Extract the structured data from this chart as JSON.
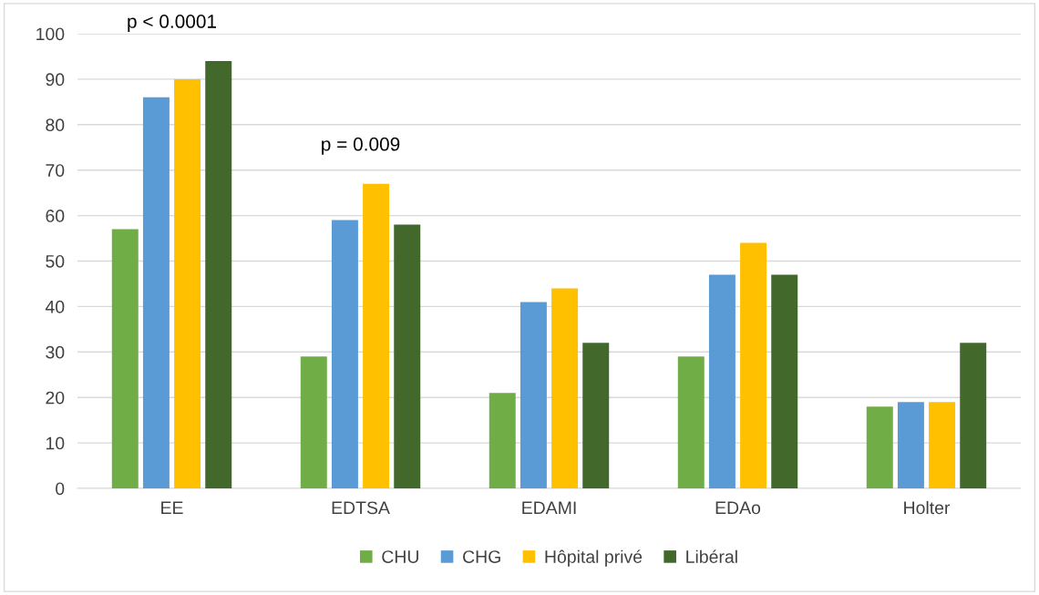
{
  "chart_data": {
    "type": "bar",
    "categories": [
      "EE",
      "EDTSA",
      "EDAMI",
      "EDAo",
      "Holter"
    ],
    "series": [
      {
        "name": "CHU",
        "color": "#70ad47",
        "values": [
          57,
          29,
          21,
          29,
          18
        ]
      },
      {
        "name": "CHG",
        "color": "#5b9bd5",
        "values": [
          86,
          59,
          41,
          47,
          19
        ]
      },
      {
        "name": "Hôpital privé",
        "color": "#ffc000",
        "values": [
          90,
          67,
          44,
          54,
          19
        ]
      },
      {
        "name": "Libéral",
        "color": "#43682b",
        "values": [
          94,
          58,
          32,
          47,
          32
        ]
      }
    ],
    "ylim": [
      0,
      100
    ],
    "yticks": [
      0,
      10,
      20,
      30,
      40,
      50,
      60,
      70,
      80,
      90,
      100
    ],
    "grid": "y",
    "legend": "bottom",
    "annotations": [
      "p < 0.0001",
      "p = 0.009"
    ]
  }
}
